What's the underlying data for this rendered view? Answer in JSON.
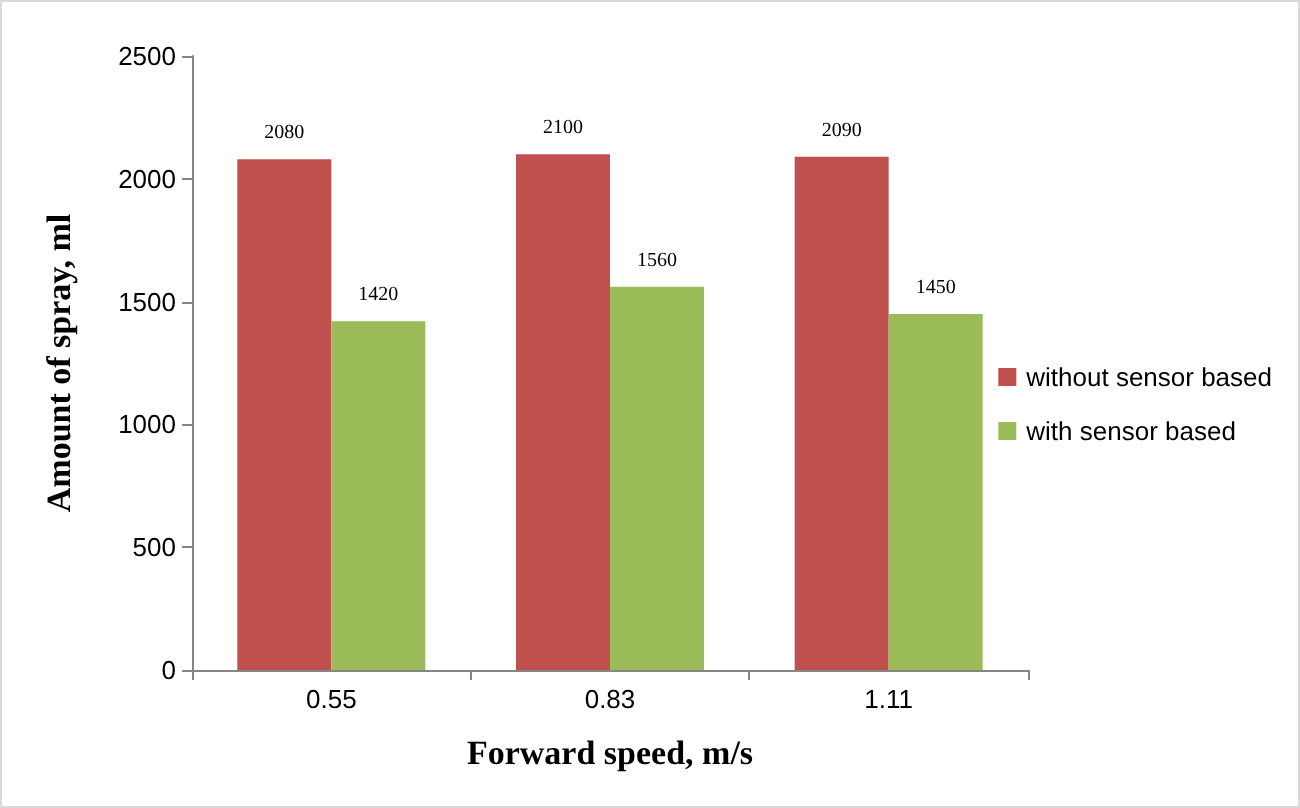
{
  "chart_data": {
    "type": "bar",
    "xlabel": "Forward speed, m/s",
    "ylabel": "Amount of spray, ml",
    "categories": [
      "0.55",
      "0.83",
      "1.11"
    ],
    "series": [
      {
        "name": "without sensor based",
        "color": "#c0504d",
        "values": [
          2080,
          2100,
          2090
        ]
      },
      {
        "name": "with sensor based",
        "color": "#9bbb59",
        "values": [
          1420,
          1560,
          1450
        ]
      }
    ],
    "ylim": [
      0,
      2500
    ],
    "yticks": [
      0,
      500,
      1000,
      1500,
      2000,
      2500
    ],
    "grid": false,
    "legend": "right",
    "data_labels": true
  }
}
